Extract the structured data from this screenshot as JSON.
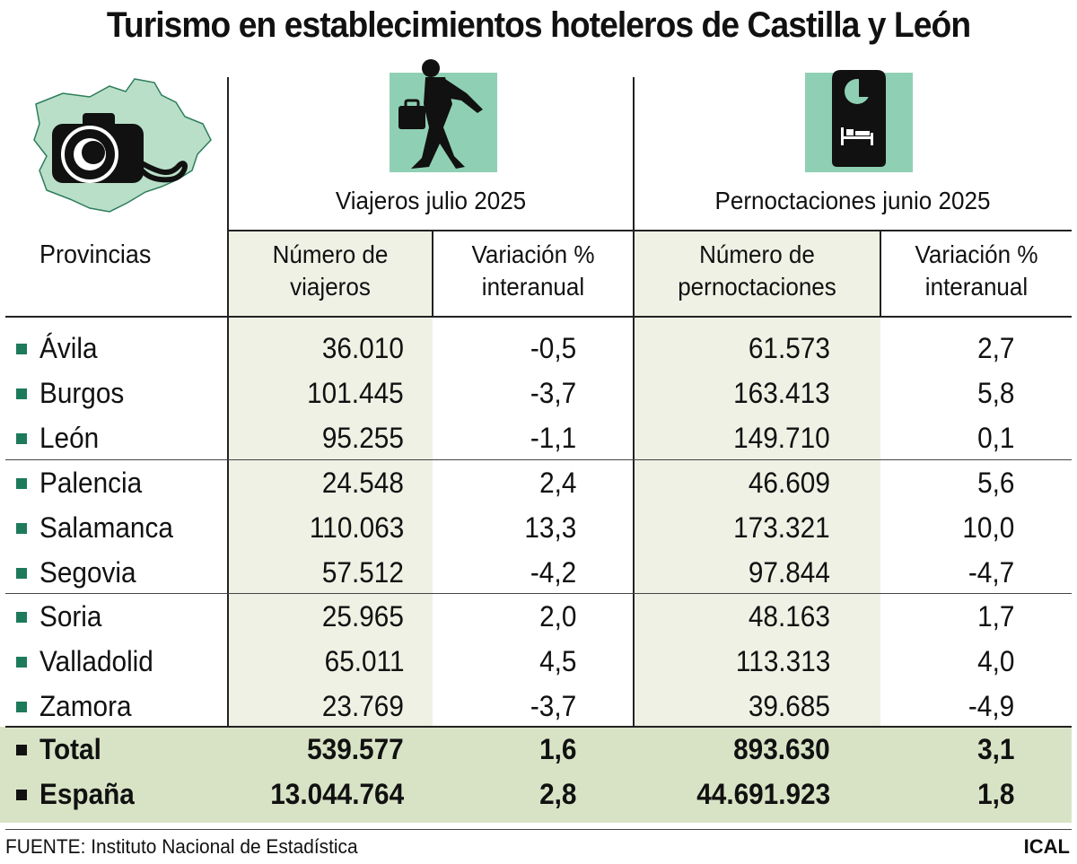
{
  "title": "Turismo en establecimientos hoteleros de Castilla y León",
  "colors": {
    "accent_green": "#1d7a5a",
    "icon_bg": "#8fd0b4",
    "column_shade": "#eef1e4",
    "total_shade": "#d8e3c6",
    "map_fill": "#b9dfc9"
  },
  "icons": [
    "castilla-leon-map-camera-icon",
    "traveler-icon",
    "door-hanger-bed-icon"
  ],
  "header": {
    "provinces": "Provincias",
    "groups": [
      "Viajeros julio 2025",
      "Pernoctaciones junio 2025"
    ],
    "columns": [
      [
        "Número de",
        "viajeros"
      ],
      [
        "Variación %",
        "interanual"
      ],
      [
        "Número de",
        "pernoctaciones"
      ],
      [
        "Variación %",
        "interanual"
      ]
    ]
  },
  "chart_data": {
    "type": "table",
    "title": "Turismo en establecimientos hoteleros de Castilla y León",
    "rows": [
      {
        "name": "Ávila",
        "viajeros": "36.010",
        "var_viajeros": "-0,5",
        "pernoctaciones": "61.573",
        "var_pernoctaciones": "2,7"
      },
      {
        "name": "Burgos",
        "viajeros": "101.445",
        "var_viajeros": "-3,7",
        "pernoctaciones": "163.413",
        "var_pernoctaciones": "5,8"
      },
      {
        "name": "León",
        "viajeros": "95.255",
        "var_viajeros": "-1,1",
        "pernoctaciones": "149.710",
        "var_pernoctaciones": "0,1"
      },
      {
        "name": "Palencia",
        "viajeros": "24.548",
        "var_viajeros": "2,4",
        "pernoctaciones": "46.609",
        "var_pernoctaciones": "5,6"
      },
      {
        "name": "Salamanca",
        "viajeros": "110.063",
        "var_viajeros": "13,3",
        "pernoctaciones": "173.321",
        "var_pernoctaciones": "10,0"
      },
      {
        "name": "Segovia",
        "viajeros": "57.512",
        "var_viajeros": "-4,2",
        "pernoctaciones": "97.844",
        "var_pernoctaciones": "-4,7"
      },
      {
        "name": "Soria",
        "viajeros": "25.965",
        "var_viajeros": "2,0",
        "pernoctaciones": "48.163",
        "var_pernoctaciones": "1,7"
      },
      {
        "name": "Valladolid",
        "viajeros": "65.011",
        "var_viajeros": "4,5",
        "pernoctaciones": "113.313",
        "var_pernoctaciones": "4,0"
      },
      {
        "name": "Zamora",
        "viajeros": "23.769",
        "var_viajeros": "-3,7",
        "pernoctaciones": "39.685",
        "var_pernoctaciones": "-4,9"
      }
    ],
    "totals": [
      {
        "name": "Total",
        "viajeros": "539.577",
        "var_viajeros": "1,6",
        "pernoctaciones": "893.630",
        "var_pernoctaciones": "3,1"
      },
      {
        "name": "España",
        "viajeros": "13.044.764",
        "var_viajeros": "2,8",
        "pernoctaciones": "44.691.923",
        "var_pernoctaciones": "1,8"
      }
    ]
  },
  "footer": {
    "source": "FUENTE: Instituto Nacional de Estadística",
    "credit": "ICAL"
  }
}
